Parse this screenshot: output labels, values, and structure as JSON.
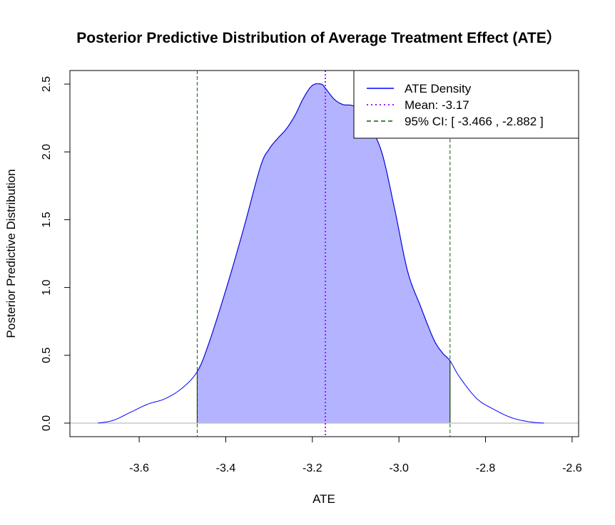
{
  "chart_data": {
    "type": "area",
    "title": "Posterior Predictive Distribution of Average Treatment Effect (ATE）",
    "xlabel": "ATE",
    "ylabel": "Posterior Predictive Distribution",
    "xlim": [
      -3.76,
      -2.585
    ],
    "ylim": [
      -0.1,
      2.6
    ],
    "x_ticks": [
      -3.6,
      -3.4,
      -3.2,
      -3.0,
      -2.8,
      -2.6
    ],
    "x_tick_labels": [
      "-3.6",
      "-3.4",
      "-3.2",
      "-3.0",
      "-2.8",
      "-2.6"
    ],
    "y_ticks": [
      0.0,
      0.5,
      1.0,
      1.5,
      2.0,
      2.5
    ],
    "y_tick_labels": [
      "0.0",
      "0.5",
      "1.0",
      "1.5",
      "2.0",
      "2.5"
    ],
    "grid": false,
    "legend_position": "top-right",
    "legend": [
      {
        "label": "ATE Density",
        "style": "solid",
        "color": "#0000ff"
      },
      {
        "label": "Mean: -3.17",
        "style": "dotted",
        "color": "#a020f0"
      },
      {
        "label": "95% CI: [ -3.466 , -2.882 ]",
        "style": "dashed",
        "color": "#006400"
      }
    ],
    "series": [
      {
        "name": "ATE Density",
        "color": "#0000ff",
        "x": [
          -3.695,
          -3.66,
          -3.62,
          -3.58,
          -3.54,
          -3.5,
          -3.466,
          -3.44,
          -3.4,
          -3.36,
          -3.32,
          -3.3,
          -3.28,
          -3.26,
          -3.24,
          -3.22,
          -3.2,
          -3.18,
          -3.17,
          -3.15,
          -3.13,
          -3.1,
          -3.07,
          -3.04,
          -3.01,
          -2.98,
          -2.95,
          -2.92,
          -2.9,
          -2.882,
          -2.86,
          -2.82,
          -2.78,
          -2.74,
          -2.7,
          -2.665
        ],
        "y": [
          0.0,
          0.02,
          0.08,
          0.14,
          0.18,
          0.26,
          0.38,
          0.58,
          0.98,
          1.42,
          1.89,
          2.02,
          2.1,
          2.17,
          2.27,
          2.4,
          2.49,
          2.5,
          2.47,
          2.39,
          2.35,
          2.33,
          2.2,
          2.0,
          1.58,
          1.12,
          0.86,
          0.62,
          0.52,
          0.46,
          0.34,
          0.18,
          0.1,
          0.04,
          0.01,
          0.0
        ]
      }
    ],
    "shaded_region": {
      "x_from": -3.466,
      "x_to": -2.882,
      "color": "#b3b3ff"
    },
    "mean": -3.17,
    "ci": [
      -3.466,
      -2.882
    ],
    "baseline_color": "#bebebe"
  }
}
